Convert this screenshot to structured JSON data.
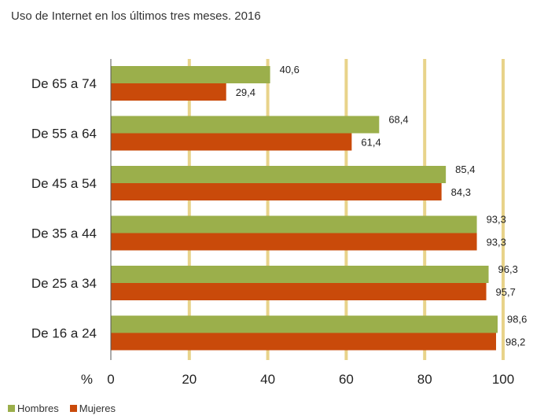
{
  "chart_data": {
    "type": "bar",
    "orientation": "horizontal",
    "title": "Uso de Internet en los últimos tres meses. 2016",
    "unit": "%",
    "categories": [
      "De 65 a 74",
      "De 55 a 64",
      "De 45 a 54",
      "De 35 a 44",
      "De 25 a 34",
      "De 16 a 24"
    ],
    "series": [
      {
        "name": "Hombres",
        "color": "#9BAF4B",
        "values": [
          40.6,
          68.4,
          85.4,
          93.3,
          96.3,
          98.6
        ],
        "labels": [
          "40,6",
          "68,4",
          "85,4",
          "93,3",
          "96,3",
          "98,6"
        ]
      },
      {
        "name": "Mujeres",
        "color": "#C94A0A",
        "values": [
          29.4,
          61.4,
          84.3,
          93.3,
          95.7,
          98.2
        ],
        "labels": [
          "29,4",
          "61,4",
          "84,3",
          "93,3",
          "95,7",
          "98,2"
        ]
      }
    ],
    "xlim": [
      0,
      100
    ],
    "xticks": [
      "0",
      "20",
      "40",
      "60",
      "80",
      "100"
    ],
    "gridline_color": "#E8D38A",
    "grid": true,
    "legend": "bottom-left"
  }
}
